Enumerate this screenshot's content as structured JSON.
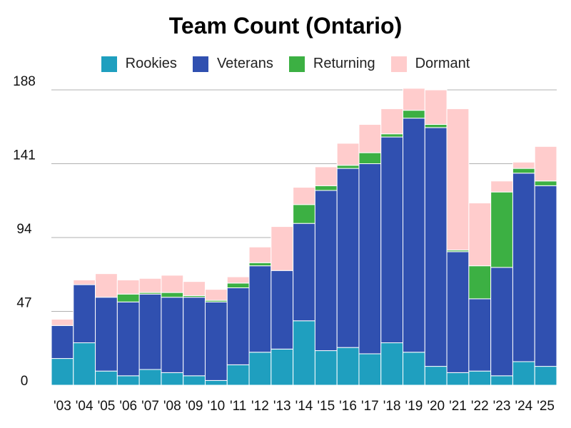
{
  "chart_data": {
    "type": "bar",
    "stacked": true,
    "title": "Team Count (Ontario)",
    "xlabel": "",
    "ylabel": "",
    "ylim": [
      0,
      188
    ],
    "yticks": [
      0,
      47,
      94,
      141,
      188
    ],
    "grid": true,
    "legend_position": "top",
    "categories": [
      "'03",
      "'04",
      "'05",
      "'06",
      "'07",
      "'08",
      "'09",
      "'10",
      "'11",
      "'12",
      "'13",
      "'14",
      "'15",
      "'16",
      "'17",
      "'18",
      "'19",
      "'20",
      "'21",
      "'22",
      "'23",
      "'24",
      "'25"
    ],
    "series": [
      {
        "name": "Rookies",
        "color": "#1f9fbf",
        "values": [
          17,
          27,
          9,
          6,
          10,
          8,
          6,
          3,
          13,
          21,
          23,
          41,
          22,
          24,
          20,
          27,
          21,
          12,
          8,
          9,
          6,
          15,
          12
        ]
      },
      {
        "name": "Veterans",
        "color": "#3050b0",
        "values": [
          21,
          37,
          47,
          47,
          48,
          48,
          50,
          50,
          49,
          55,
          50,
          62,
          102,
          114,
          121,
          131,
          149,
          152,
          77,
          46,
          69,
          120,
          115
        ]
      },
      {
        "name": "Returning",
        "color": "#3cb043",
        "values": [
          0,
          0,
          0,
          5,
          1,
          3,
          1,
          1,
          3,
          2,
          0,
          12,
          3,
          2,
          7,
          2,
          5,
          2,
          1,
          21,
          48,
          3,
          3
        ]
      },
      {
        "name": "Dormant",
        "color": "#ffcccc",
        "values": [
          4,
          3,
          15,
          9,
          9,
          11,
          9,
          7,
          4,
          10,
          28,
          11,
          12,
          14,
          18,
          16,
          14,
          22,
          90,
          40,
          7,
          4,
          22
        ]
      }
    ]
  }
}
